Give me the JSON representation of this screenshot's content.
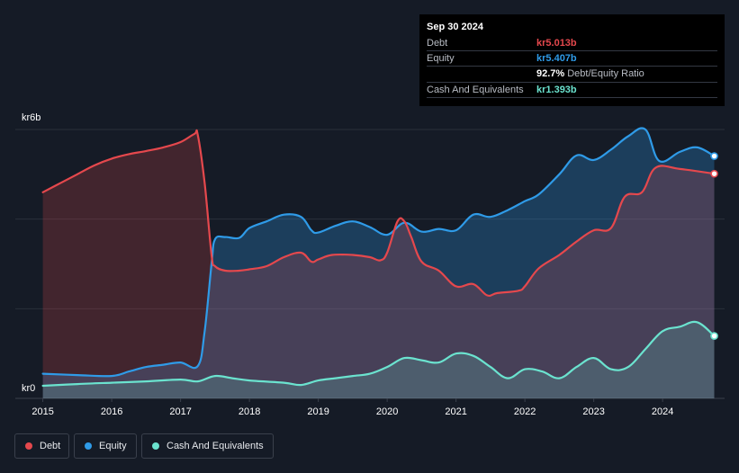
{
  "tooltip": {
    "date": "Sep 30 2024",
    "rows": {
      "debt": {
        "label": "Debt",
        "value": "kr5.013b"
      },
      "equity": {
        "label": "Equity",
        "value": "kr5.407b"
      },
      "ratio": {
        "value": "92.7%",
        "suffix": "Debt/Equity Ratio"
      },
      "cash": {
        "label": "Cash And Equivalents",
        "value": "kr1.393b"
      }
    }
  },
  "colors": {
    "debt": "#e5484d",
    "equity": "#2f9be8",
    "cash": "#6be3cf",
    "background": "#151b26"
  },
  "legend": [
    {
      "key": "debt",
      "label": "Debt"
    },
    {
      "key": "equity",
      "label": "Equity"
    },
    {
      "key": "cash",
      "label": "Cash And Equivalents"
    }
  ],
  "chart_data": {
    "type": "area",
    "title": "",
    "xlabel": "",
    "ylabel": "",
    "y_top_label": "kr6b",
    "y_bottom_label": "kr0",
    "ylim": [
      0,
      6
    ],
    "xlim": [
      2014.6,
      2024.9
    ],
    "x_ticks": [
      2015,
      2016,
      2017,
      2018,
      2019,
      2020,
      2021,
      2022,
      2023,
      2024
    ],
    "series": [
      {
        "key": "debt",
        "name": "Debt",
        "unit": "kr b",
        "points": [
          [
            2015.0,
            4.6
          ],
          [
            2015.25,
            4.8
          ],
          [
            2015.5,
            5.0
          ],
          [
            2015.75,
            5.2
          ],
          [
            2016.0,
            5.35
          ],
          [
            2016.25,
            5.45
          ],
          [
            2016.5,
            5.52
          ],
          [
            2016.75,
            5.6
          ],
          [
            2017.0,
            5.72
          ],
          [
            2017.2,
            5.9
          ],
          [
            2017.25,
            5.88
          ],
          [
            2017.35,
            4.8
          ],
          [
            2017.45,
            3.2
          ],
          [
            2017.5,
            2.95
          ],
          [
            2017.65,
            2.85
          ],
          [
            2017.85,
            2.85
          ],
          [
            2018.0,
            2.88
          ],
          [
            2018.25,
            2.95
          ],
          [
            2018.5,
            3.15
          ],
          [
            2018.75,
            3.25
          ],
          [
            2018.9,
            3.05
          ],
          [
            2019.0,
            3.1
          ],
          [
            2019.2,
            3.2
          ],
          [
            2019.5,
            3.2
          ],
          [
            2019.75,
            3.15
          ],
          [
            2019.9,
            3.08
          ],
          [
            2020.0,
            3.25
          ],
          [
            2020.15,
            3.95
          ],
          [
            2020.25,
            3.95
          ],
          [
            2020.35,
            3.6
          ],
          [
            2020.5,
            3.05
          ],
          [
            2020.75,
            2.85
          ],
          [
            2021.0,
            2.5
          ],
          [
            2021.25,
            2.55
          ],
          [
            2021.45,
            2.3
          ],
          [
            2021.6,
            2.35
          ],
          [
            2021.9,
            2.4
          ],
          [
            2022.0,
            2.5
          ],
          [
            2022.2,
            2.9
          ],
          [
            2022.5,
            3.2
          ],
          [
            2022.75,
            3.5
          ],
          [
            2023.0,
            3.75
          ],
          [
            2023.25,
            3.8
          ],
          [
            2023.45,
            4.5
          ],
          [
            2023.7,
            4.6
          ],
          [
            2023.9,
            5.15
          ],
          [
            2024.25,
            5.12
          ],
          [
            2024.75,
            5.013
          ]
        ]
      },
      {
        "key": "equity",
        "name": "Equity",
        "unit": "kr b",
        "points": [
          [
            2015.0,
            0.55
          ],
          [
            2015.5,
            0.52
          ],
          [
            2016.0,
            0.5
          ],
          [
            2016.25,
            0.6
          ],
          [
            2016.5,
            0.7
          ],
          [
            2016.75,
            0.75
          ],
          [
            2017.0,
            0.8
          ],
          [
            2017.25,
            0.72
          ],
          [
            2017.35,
            1.5
          ],
          [
            2017.45,
            3.0
          ],
          [
            2017.5,
            3.55
          ],
          [
            2017.65,
            3.6
          ],
          [
            2017.85,
            3.58
          ],
          [
            2018.0,
            3.8
          ],
          [
            2018.25,
            3.95
          ],
          [
            2018.5,
            4.1
          ],
          [
            2018.75,
            4.05
          ],
          [
            2018.9,
            3.75
          ],
          [
            2019.0,
            3.7
          ],
          [
            2019.25,
            3.85
          ],
          [
            2019.5,
            3.95
          ],
          [
            2019.75,
            3.82
          ],
          [
            2020.0,
            3.65
          ],
          [
            2020.25,
            3.92
          ],
          [
            2020.5,
            3.72
          ],
          [
            2020.75,
            3.78
          ],
          [
            2021.0,
            3.75
          ],
          [
            2021.25,
            4.1
          ],
          [
            2021.5,
            4.05
          ],
          [
            2021.75,
            4.2
          ],
          [
            2022.0,
            4.4
          ],
          [
            2022.2,
            4.55
          ],
          [
            2022.5,
            5.0
          ],
          [
            2022.75,
            5.42
          ],
          [
            2023.0,
            5.32
          ],
          [
            2023.25,
            5.55
          ],
          [
            2023.5,
            5.85
          ],
          [
            2023.75,
            6.0
          ],
          [
            2023.95,
            5.3
          ],
          [
            2024.25,
            5.5
          ],
          [
            2024.5,
            5.6
          ],
          [
            2024.75,
            5.407
          ]
        ]
      },
      {
        "key": "cash",
        "name": "Cash And Equivalents",
        "unit": "kr b",
        "points": [
          [
            2015.0,
            0.28
          ],
          [
            2015.5,
            0.32
          ],
          [
            2016.0,
            0.35
          ],
          [
            2016.5,
            0.38
          ],
          [
            2017.0,
            0.42
          ],
          [
            2017.25,
            0.38
          ],
          [
            2017.5,
            0.5
          ],
          [
            2017.75,
            0.45
          ],
          [
            2018.0,
            0.4
          ],
          [
            2018.5,
            0.35
          ],
          [
            2018.75,
            0.3
          ],
          [
            2019.0,
            0.4
          ],
          [
            2019.25,
            0.45
          ],
          [
            2019.5,
            0.5
          ],
          [
            2019.75,
            0.55
          ],
          [
            2020.0,
            0.7
          ],
          [
            2020.25,
            0.9
          ],
          [
            2020.5,
            0.85
          ],
          [
            2020.75,
            0.8
          ],
          [
            2021.0,
            1.0
          ],
          [
            2021.25,
            0.95
          ],
          [
            2021.5,
            0.7
          ],
          [
            2021.75,
            0.45
          ],
          [
            2022.0,
            0.65
          ],
          [
            2022.25,
            0.6
          ],
          [
            2022.5,
            0.45
          ],
          [
            2022.75,
            0.7
          ],
          [
            2023.0,
            0.9
          ],
          [
            2023.25,
            0.65
          ],
          [
            2023.5,
            0.7
          ],
          [
            2023.75,
            1.1
          ],
          [
            2024.0,
            1.5
          ],
          [
            2024.25,
            1.6
          ],
          [
            2024.5,
            1.7
          ],
          [
            2024.75,
            1.393
          ]
        ]
      }
    ]
  }
}
